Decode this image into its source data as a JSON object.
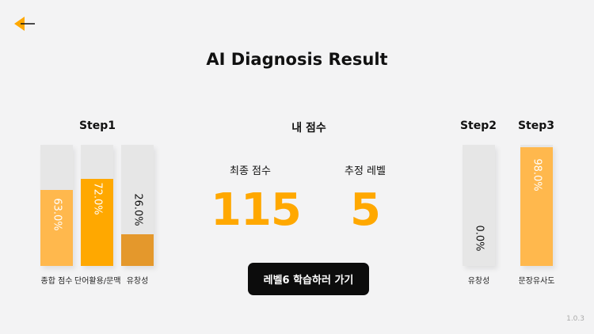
{
  "title": "AI Diagnosis Result",
  "step1": {
    "title": "Step1",
    "bars": [
      {
        "label": "종합 점수",
        "value_text": "63.0%",
        "value": 63.0,
        "color": "#ffb84d"
      },
      {
        "label": "단어활용/문맥",
        "value_text": "72.0%",
        "value": 72.0,
        "color": "#ffa800"
      },
      {
        "label": "유창성",
        "value_text": "26.0%",
        "value": 26.0,
        "color": "#e4982c"
      }
    ]
  },
  "my_score": {
    "title": "내 점수",
    "final_label": "최종 점수",
    "final_value": "115",
    "level_label": "추정 레벨",
    "level_value": "5"
  },
  "cta_label": "레벨6 학습하러 가기",
  "step2": {
    "title": "Step2",
    "bar": {
      "label": "유창성",
      "value_text": "0.0%",
      "value": 0.0,
      "color": "#ffa800"
    }
  },
  "step3": {
    "title": "Step3",
    "bar": {
      "label": "문장유사도",
      "value_text": "98.0%",
      "value": 98.0,
      "color": "#ffb84d"
    }
  },
  "version": "1.0.3",
  "colors": {
    "accent": "#ffa800",
    "back_icon": "#ffa800"
  }
}
